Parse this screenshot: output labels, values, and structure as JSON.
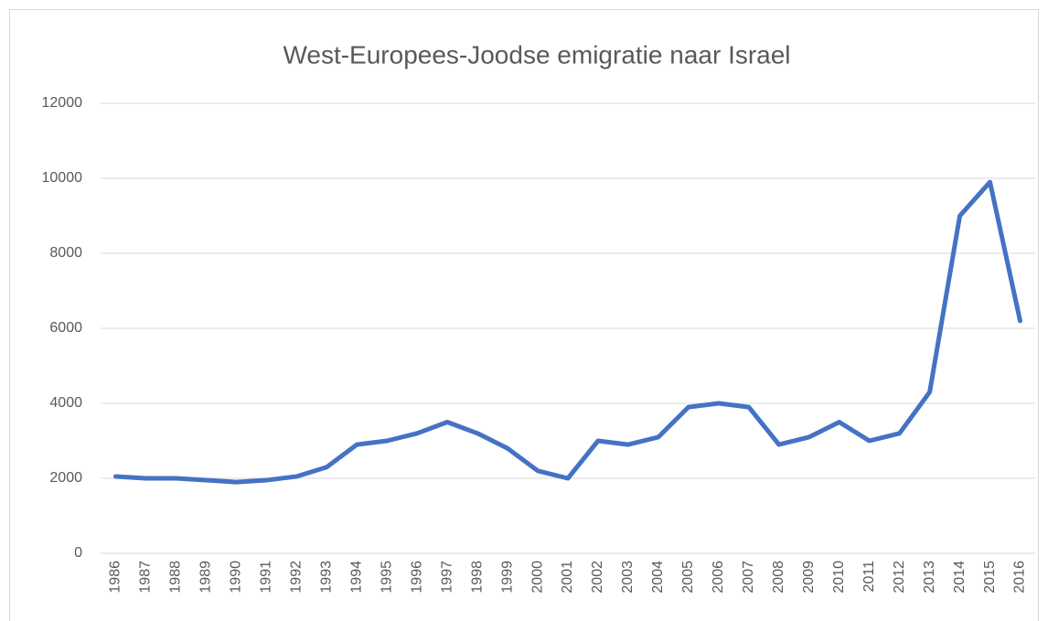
{
  "chart_data": {
    "type": "line",
    "title": "West-Europees-Joodse emigratie naar Israel",
    "categories": [
      "1986",
      "1987",
      "1988",
      "1989",
      "1990",
      "1991",
      "1992",
      "1993",
      "1994",
      "1995",
      "1996",
      "1997",
      "1998",
      "1999",
      "2000",
      "2001",
      "2002",
      "2003",
      "2004",
      "2005",
      "2006",
      "2007",
      "2008",
      "2009",
      "2010",
      "2011",
      "2012",
      "2013",
      "2014",
      "2015",
      "2016"
    ],
    "values": [
      2050,
      2000,
      2000,
      1950,
      1900,
      1950,
      2050,
      2300,
      2900,
      3000,
      3200,
      3500,
      3200,
      2800,
      2200,
      2000,
      3000,
      2900,
      3100,
      3900,
      4000,
      3900,
      2900,
      3100,
      3500,
      3000,
      3200,
      4300,
      9000,
      9900,
      6200
    ],
    "color": "#4472c4",
    "ylim": [
      0,
      12000
    ],
    "yticks": [
      0,
      2000,
      4000,
      6000,
      8000,
      10000,
      12000
    ],
    "grid": true
  }
}
